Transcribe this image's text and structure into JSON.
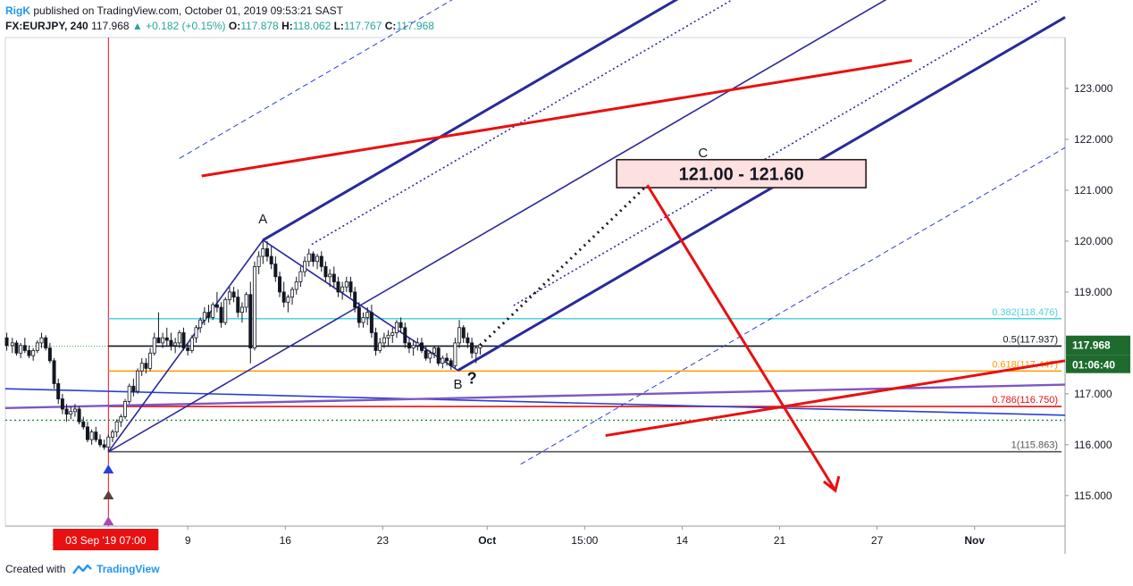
{
  "header": {
    "author": "RigK",
    "published": "published on TradingView.com, October 01, 2019 09:53:21 SAST",
    "symbol": "FX:EURJPY, 240",
    "last": "117.968",
    "change": "+0.182 (+0.15%)",
    "o_label": "O:",
    "o": "117.878",
    "h_label": "H:",
    "h": "118.062",
    "l_label": "L:",
    "l": "117.767",
    "c_label": "C:",
    "c": "117.968"
  },
  "footer": {
    "created_with": "Created with",
    "brand": "TradingView"
  },
  "colors": {
    "up": "#26a69a",
    "candle": "#131722",
    "red": "#e81010",
    "navy": "#2a2a9a",
    "cyan": "#4dd0e1",
    "orange": "#ff9800",
    "price_badge": "#1e6b2d"
  },
  "chart_data": {
    "type": "candlestick",
    "y_range": [
      114.4,
      124.0
    ],
    "y_ticks": [
      "115.000",
      "116.000",
      "117.000",
      "118.000",
      "119.000",
      "120.000",
      "121.000",
      "122.000",
      "123.000"
    ],
    "y_tick_values": [
      115,
      116,
      117,
      118,
      119,
      120,
      121,
      122,
      123
    ],
    "x_ticks": [
      {
        "label": "9",
        "day": 9
      },
      {
        "label": "16",
        "day": 16
      },
      {
        "label": "23",
        "day": 23
      },
      {
        "label": "Oct",
        "day": 30.5
      },
      {
        "label": "15:00",
        "day": 37.5
      },
      {
        "label": "14",
        "day": 44.5
      },
      {
        "label": "21",
        "day": 51.5
      },
      {
        "label": "27",
        "day": 58.5
      },
      {
        "label": "Nov",
        "day": 65.5
      }
    ],
    "x_range_days": [
      -4.1,
      72.0
    ],
    "date_badge": "03 Sep '19   07:00",
    "date_badge_day": 3.3,
    "last_price": "117.968",
    "last_price_value": 117.968,
    "countdown": "01:06:40",
    "fib_levels": [
      {
        "label": "0.382(118.476)",
        "value": 118.476,
        "color": "#4dd0e1"
      },
      {
        "label": "0.5(117.937)",
        "value": 117.937,
        "color": "#131722"
      },
      {
        "label": "0.618(117.447)",
        "value": 117.447,
        "color": "#ff9800"
      },
      {
        "label": "0.786(116.750)",
        "value": 116.75,
        "color": "#e81010"
      },
      {
        "label": "1(115.863)",
        "value": 115.863,
        "color": "#555555"
      }
    ],
    "waves": [
      {
        "label": "A",
        "day": 14.4,
        "value": 120.35
      },
      {
        "label": "B",
        "day": 28.4,
        "value": 117.1
      },
      {
        "label": "?",
        "day": 29.4,
        "value": 117.2
      },
      {
        "label": "C",
        "day": 46.0,
        "value": 121.65
      }
    ],
    "target_box": {
      "label": "121.00 - 121.60",
      "low": 121.05,
      "high": 121.6,
      "day_start": 39.8,
      "day_end": 57.7
    },
    "pitchfork": {
      "pivot": {
        "day": 3.3,
        "value": 115.86
      },
      "a": {
        "day": 14.4,
        "value": 120.02
      },
      "b": {
        "day": 28.4,
        "value": 117.46
      }
    },
    "candles": [
      [
        -4.0,
        118.1,
        118.2,
        117.85,
        117.95
      ],
      [
        -3.6,
        117.95,
        118.1,
        117.8,
        118.0
      ],
      [
        -3.3,
        118.0,
        118.05,
        117.75,
        117.8
      ],
      [
        -3.0,
        117.8,
        118.0,
        117.7,
        117.95
      ],
      [
        -2.7,
        117.95,
        118.1,
        117.8,
        117.85
      ],
      [
        -2.4,
        117.85,
        117.95,
        117.7,
        117.75
      ],
      [
        -2.1,
        117.75,
        117.9,
        117.65,
        117.85
      ],
      [
        -1.8,
        117.85,
        118.05,
        117.8,
        118.0
      ],
      [
        -1.5,
        118.0,
        118.2,
        117.9,
        118.1
      ],
      [
        -1.2,
        118.1,
        118.15,
        117.85,
        117.9
      ],
      [
        -0.9,
        117.9,
        118.0,
        117.6,
        117.65
      ],
      [
        -0.6,
        117.65,
        117.7,
        117.1,
        117.2
      ],
      [
        -0.3,
        117.2,
        117.3,
        116.8,
        116.9
      ],
      [
        0.0,
        116.9,
        117.0,
        116.6,
        116.7
      ],
      [
        0.3,
        116.7,
        116.8,
        116.45,
        116.6
      ],
      [
        0.6,
        116.6,
        116.75,
        116.5,
        116.65
      ],
      [
        0.9,
        116.65,
        116.8,
        116.55,
        116.7
      ],
      [
        1.2,
        116.7,
        116.75,
        116.4,
        116.45
      ],
      [
        1.5,
        116.45,
        116.55,
        116.3,
        116.35
      ],
      [
        1.8,
        116.35,
        116.45,
        116.05,
        116.1
      ],
      [
        2.1,
        116.1,
        116.3,
        116.0,
        116.25
      ],
      [
        2.4,
        116.25,
        116.35,
        116.05,
        116.1
      ],
      [
        2.7,
        116.1,
        116.2,
        115.95,
        116.0
      ],
      [
        3.0,
        116.0,
        116.1,
        115.9,
        115.95
      ],
      [
        3.3,
        115.95,
        116.2,
        115.86,
        116.15
      ],
      [
        3.6,
        116.15,
        116.3,
        116.05,
        116.25
      ],
      [
        3.9,
        116.25,
        116.5,
        116.15,
        116.45
      ],
      [
        4.2,
        116.45,
        116.6,
        116.35,
        116.55
      ],
      [
        4.5,
        116.55,
        116.9,
        116.5,
        116.85
      ],
      [
        4.8,
        116.85,
        117.2,
        116.8,
        117.15
      ],
      [
        5.1,
        117.15,
        117.3,
        116.95,
        117.05
      ],
      [
        5.4,
        117.05,
        117.5,
        117.0,
        117.45
      ],
      [
        5.7,
        117.45,
        117.7,
        117.35,
        117.6
      ],
      [
        6.0,
        117.6,
        117.7,
        117.4,
        117.5
      ],
      [
        6.3,
        117.5,
        117.9,
        117.45,
        117.8
      ],
      [
        6.6,
        117.8,
        118.2,
        117.75,
        118.1
      ],
      [
        6.9,
        118.1,
        118.6,
        118.0,
        118.0
      ],
      [
        7.2,
        118.0,
        118.2,
        117.9,
        118.1
      ],
      [
        7.5,
        118.1,
        118.3,
        117.95,
        118.05
      ],
      [
        7.8,
        118.05,
        118.2,
        117.85,
        117.95
      ],
      [
        8.1,
        117.95,
        118.1,
        117.8,
        118.0
      ],
      [
        8.4,
        118.0,
        118.25,
        117.9,
        118.2
      ],
      [
        8.7,
        118.2,
        118.3,
        117.85,
        117.9
      ],
      [
        9.0,
        117.9,
        118.0,
        117.75,
        117.85
      ],
      [
        9.3,
        117.85,
        118.15,
        117.8,
        118.1
      ],
      [
        9.6,
        118.1,
        118.35,
        118.0,
        118.3
      ],
      [
        9.9,
        118.3,
        118.5,
        118.2,
        118.45
      ],
      [
        10.2,
        118.45,
        118.7,
        118.35,
        118.6
      ],
      [
        10.5,
        118.6,
        118.75,
        118.4,
        118.5
      ],
      [
        10.8,
        118.5,
        118.8,
        118.45,
        118.75
      ],
      [
        11.1,
        118.75,
        119.0,
        118.6,
        118.7
      ],
      [
        11.4,
        118.7,
        118.8,
        118.3,
        118.4
      ],
      [
        11.7,
        118.4,
        118.9,
        118.35,
        118.85
      ],
      [
        12.0,
        118.85,
        119.1,
        118.75,
        119.0
      ],
      [
        12.3,
        119.0,
        119.1,
        118.8,
        118.9
      ],
      [
        12.6,
        118.9,
        119.05,
        118.5,
        118.6
      ],
      [
        12.9,
        118.6,
        118.8,
        118.4,
        118.7
      ],
      [
        13.2,
        118.7,
        119.0,
        118.6,
        118.95
      ],
      [
        13.5,
        118.95,
        119.2,
        117.6,
        117.9
      ],
      [
        13.8,
        117.9,
        119.6,
        117.85,
        119.5
      ],
      [
        14.1,
        119.5,
        119.8,
        119.35,
        119.7
      ],
      [
        14.4,
        119.7,
        120.02,
        119.55,
        119.85
      ],
      [
        14.7,
        119.85,
        120.0,
        119.6,
        119.7
      ],
      [
        15.0,
        119.7,
        119.9,
        119.45,
        119.55
      ],
      [
        15.3,
        119.55,
        119.7,
        119.2,
        119.3
      ],
      [
        15.6,
        119.3,
        119.4,
        118.9,
        119.0
      ],
      [
        15.9,
        119.0,
        119.2,
        118.7,
        118.8
      ],
      [
        16.2,
        118.8,
        118.95,
        118.6,
        118.9
      ],
      [
        16.5,
        118.9,
        119.1,
        118.75,
        119.05
      ],
      [
        16.8,
        119.05,
        119.3,
        118.95,
        119.2
      ],
      [
        17.1,
        119.2,
        119.5,
        119.1,
        119.4
      ],
      [
        17.4,
        119.4,
        119.7,
        119.3,
        119.6
      ],
      [
        17.7,
        119.6,
        119.85,
        119.5,
        119.75
      ],
      [
        18.0,
        119.75,
        119.8,
        119.5,
        119.6
      ],
      [
        18.3,
        119.6,
        119.75,
        119.45,
        119.7
      ],
      [
        18.6,
        119.7,
        119.8,
        119.4,
        119.5
      ],
      [
        18.9,
        119.5,
        119.6,
        119.2,
        119.3
      ],
      [
        19.2,
        119.3,
        119.45,
        119.1,
        119.35
      ],
      [
        19.5,
        119.35,
        119.5,
        119.1,
        119.2
      ],
      [
        19.8,
        119.2,
        119.3,
        118.9,
        119.0
      ],
      [
        20.1,
        119.0,
        119.2,
        118.85,
        119.1
      ],
      [
        20.4,
        119.1,
        119.3,
        119.0,
        119.2
      ],
      [
        20.7,
        119.2,
        119.3,
        118.9,
        119.0
      ],
      [
        21.0,
        119.0,
        119.1,
        118.6,
        118.7
      ],
      [
        21.3,
        118.7,
        118.8,
        118.3,
        118.4
      ],
      [
        21.6,
        118.4,
        118.6,
        118.3,
        118.5
      ],
      [
        21.9,
        118.5,
        118.7,
        118.35,
        118.6
      ],
      [
        22.2,
        118.6,
        118.75,
        118.1,
        118.2
      ],
      [
        22.5,
        118.2,
        118.3,
        117.75,
        117.85
      ],
      [
        22.8,
        117.85,
        118.1,
        117.8,
        118.0
      ],
      [
        23.1,
        118.0,
        118.2,
        117.9,
        118.1
      ],
      [
        23.4,
        118.1,
        118.25,
        117.95,
        118.15
      ],
      [
        23.7,
        118.15,
        118.3,
        118.0,
        118.2
      ],
      [
        24.0,
        118.2,
        118.45,
        118.1,
        118.4
      ],
      [
        24.3,
        118.4,
        118.5,
        118.2,
        118.3
      ],
      [
        24.6,
        118.3,
        118.4,
        117.9,
        118.0
      ],
      [
        24.9,
        118.0,
        118.1,
        117.8,
        117.9
      ],
      [
        25.2,
        117.9,
        118.05,
        117.75,
        117.95
      ],
      [
        25.5,
        117.95,
        118.1,
        117.85,
        118.0
      ],
      [
        25.8,
        118.0,
        118.1,
        117.8,
        117.85
      ],
      [
        26.1,
        117.85,
        117.95,
        117.65,
        117.7
      ],
      [
        26.4,
        117.7,
        117.85,
        117.6,
        117.8
      ],
      [
        26.7,
        117.8,
        117.95,
        117.7,
        117.9
      ],
      [
        27.0,
        117.9,
        117.95,
        117.55,
        117.6
      ],
      [
        27.3,
        117.6,
        117.75,
        117.5,
        117.7
      ],
      [
        27.6,
        117.7,
        117.8,
        117.55,
        117.65
      ],
      [
        27.9,
        117.65,
        117.7,
        117.47,
        117.55
      ],
      [
        28.2,
        117.55,
        118.1,
        117.5,
        118.0
      ],
      [
        28.5,
        118.0,
        118.45,
        117.9,
        118.3
      ],
      [
        28.8,
        118.3,
        118.35,
        118.0,
        118.1
      ],
      [
        29.1,
        118.1,
        118.2,
        117.9,
        118.0
      ],
      [
        29.4,
        118.0,
        118.1,
        117.7,
        117.8
      ],
      [
        29.7,
        117.8,
        117.95,
        117.6,
        117.9
      ],
      [
        30.0,
        117.9,
        118.0,
        117.77,
        117.968
      ]
    ]
  }
}
